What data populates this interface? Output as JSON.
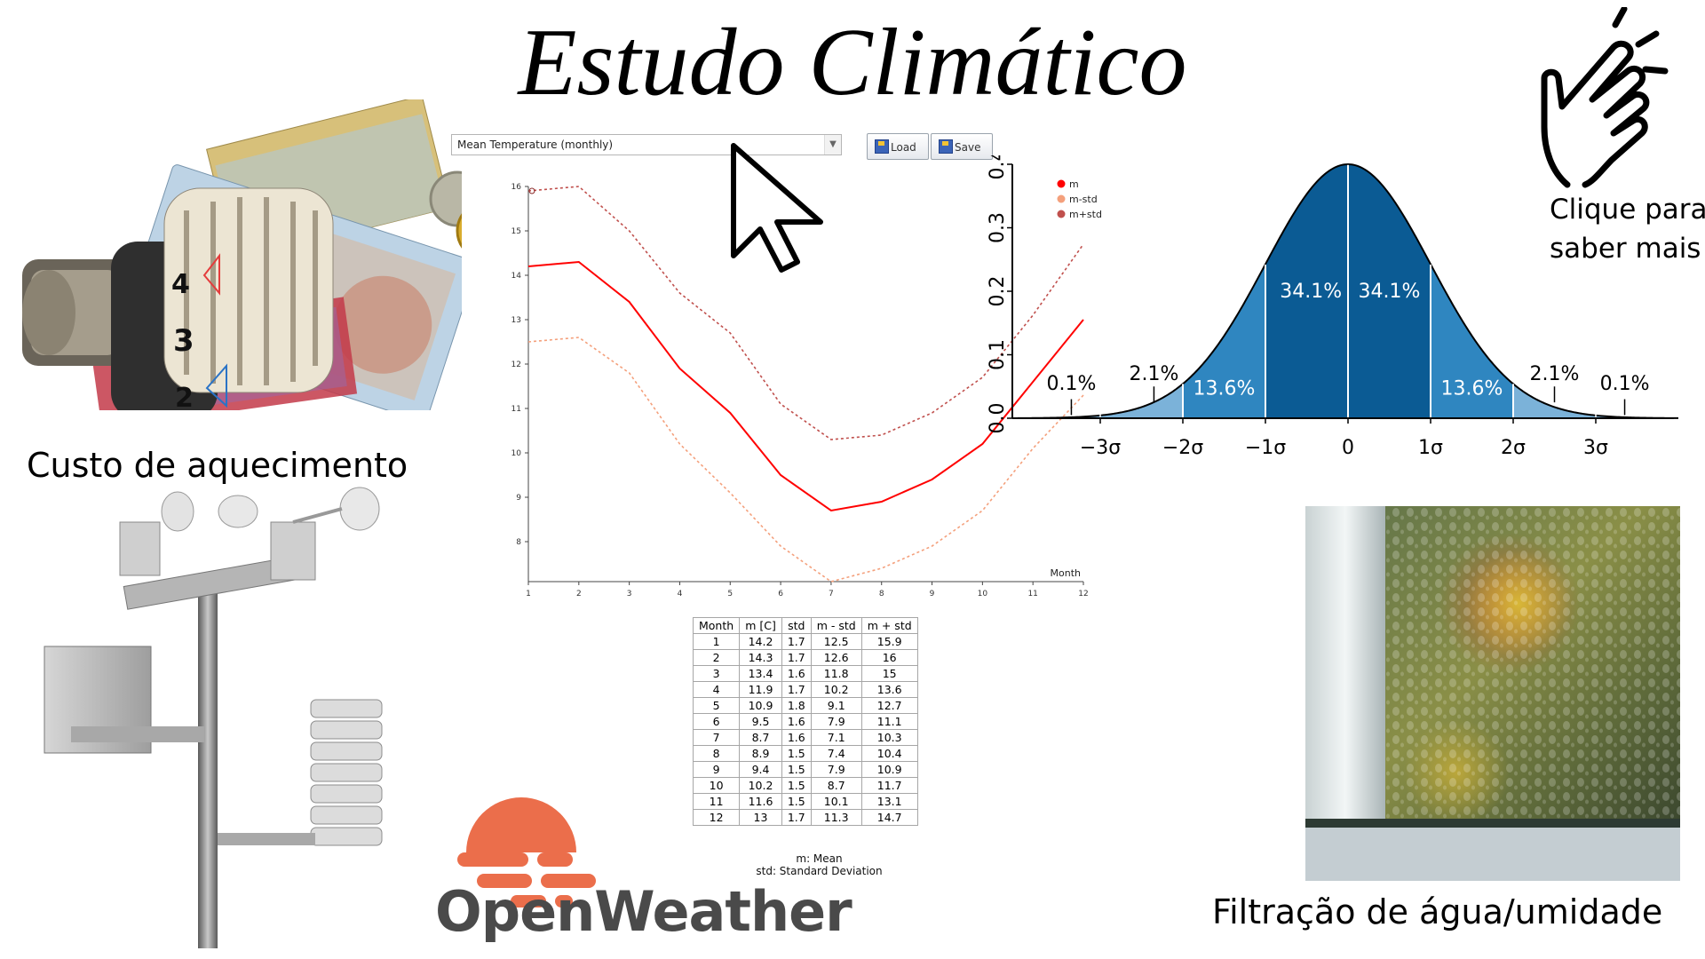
{
  "title": "Estudo Climático",
  "captions": {
    "heating": "Custo de aquecimento",
    "water": "Filtração de água/umidade",
    "click1": "Clique para",
    "click2": "saber mais"
  },
  "brand": "OpenWeather",
  "controls": {
    "select_value": "Mean Temperature (monthly)",
    "load_label": "Load",
    "save_label": "Save"
  },
  "colors": {
    "mean": "#ff0000",
    "m_std": "#f4a07c",
    "m_plus_std": "#c0504d",
    "normal_dark": "#0b5b94",
    "normal_mid": "#2f86c0",
    "normal_light": "#7bb2d9",
    "openweather": "#eb6e4b"
  },
  "chart_data": [
    {
      "type": "line",
      "xlabel": "Month",
      "x": [
        1,
        2,
        3,
        4,
        5,
        6,
        7,
        8,
        9,
        10,
        11,
        12
      ],
      "xlim": [
        1,
        12
      ],
      "ylim": [
        7.1,
        16
      ],
      "yticks": [
        8,
        9,
        10,
        11,
        12,
        13,
        14,
        15,
        16
      ],
      "legend_position": "top-right",
      "series": [
        {
          "name": "m",
          "values": [
            14.2,
            14.3,
            13.4,
            11.9,
            10.9,
            9.5,
            8.7,
            8.9,
            9.4,
            10.2,
            11.6,
            13.0
          ]
        },
        {
          "name": "m-std",
          "values": [
            12.5,
            12.6,
            11.8,
            10.2,
            9.1,
            7.9,
            7.1,
            7.4,
            7.9,
            8.7,
            10.1,
            11.3
          ]
        },
        {
          "name": "m+std",
          "values": [
            15.9,
            16.0,
            15.0,
            13.6,
            12.7,
            11.1,
            10.3,
            10.4,
            10.9,
            11.7,
            13.1,
            14.7
          ]
        }
      ]
    },
    {
      "type": "area",
      "description_of_values": "standard normal distribution",
      "ylim": [
        0,
        0.4
      ],
      "yticks": [
        "0.0",
        "0.1",
        "0.2",
        "0.3",
        "0.4"
      ],
      "xticks": [
        "−3σ",
        "−2σ",
        "−1σ",
        "0",
        "1σ",
        "2σ",
        "3σ"
      ],
      "band_labels": [
        {
          "text": "0.1%",
          "at": -3.35
        },
        {
          "text": "2.1%",
          "at": -2.35
        },
        {
          "text": "13.6%",
          "at": -1.5
        },
        {
          "text": "34.1%",
          "at": -0.45
        },
        {
          "text": "34.1%",
          "at": 0.5
        },
        {
          "text": "13.6%",
          "at": 1.5
        },
        {
          "text": "2.1%",
          "at": 2.5
        },
        {
          "text": "0.1%",
          "at": 3.35
        }
      ]
    }
  ],
  "table": {
    "headers": [
      "Month",
      "m [C]",
      "std",
      "m - std",
      "m + std"
    ],
    "rows": [
      [
        "1",
        "14.2",
        "1.7",
        "12.5",
        "15.9"
      ],
      [
        "2",
        "14.3",
        "1.7",
        "12.6",
        "16"
      ],
      [
        "3",
        "13.4",
        "1.6",
        "11.8",
        "15"
      ],
      [
        "4",
        "11.9",
        "1.7",
        "10.2",
        "13.6"
      ],
      [
        "5",
        "10.9",
        "1.8",
        "9.1",
        "12.7"
      ],
      [
        "6",
        "9.5",
        "1.6",
        "7.9",
        "11.1"
      ],
      [
        "7",
        "8.7",
        "1.6",
        "7.1",
        "10.3"
      ],
      [
        "8",
        "8.9",
        "1.5",
        "7.4",
        "10.4"
      ],
      [
        "9",
        "9.4",
        "1.5",
        "7.9",
        "10.9"
      ],
      [
        "10",
        "10.2",
        "1.5",
        "8.7",
        "11.7"
      ],
      [
        "11",
        "11.6",
        "1.5",
        "10.1",
        "13.1"
      ],
      [
        "12",
        "13",
        "1.7",
        "11.3",
        "14.7"
      ]
    ],
    "notes": [
      "m: Mean",
      "std: Standard Deviation"
    ]
  },
  "icons": {
    "cursor": "cursor-arrow-icon",
    "hand": "tapping-hand-icon",
    "logo": "openweather-sun-icon"
  }
}
